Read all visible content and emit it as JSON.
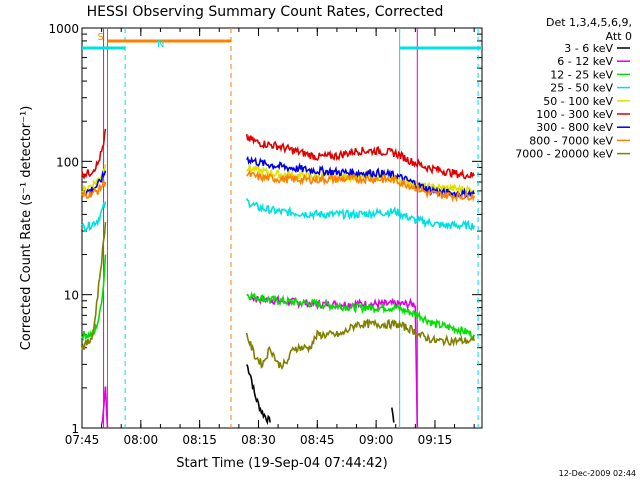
{
  "chart_data": {
    "type": "line",
    "title": "HESSI Observing Summary Count Rates, Corrected",
    "xlabel": "Start Time (19-Sep-04 07:44:42)",
    "ylabel": "Corrected Count Rate (s⁻¹ detector⁻¹)",
    "y_scale": "log",
    "ylim": [
      1,
      1000
    ],
    "xlim_minutes_after_0745": [
      0,
      102
    ],
    "xticks": [
      {
        "m": 0,
        "label": "07:45"
      },
      {
        "m": 15,
        "label": "08:00"
      },
      {
        "m": 30,
        "label": "08:15"
      },
      {
        "m": 45,
        "label": "08:30"
      },
      {
        "m": 60,
        "label": "08:45"
      },
      {
        "m": 75,
        "label": "09:00"
      },
      {
        "m": 90,
        "label": "09:15"
      }
    ],
    "yticks": [
      {
        "v": 1,
        "label": "1"
      },
      {
        "v": 10,
        "label": "10"
      },
      {
        "v": 100,
        "label": "100"
      },
      {
        "v": 1000,
        "label": "1000"
      }
    ],
    "legend": {
      "placement": "right",
      "header": [
        "Det 1,3,4,5,6,9,",
        "Att 0"
      ]
    },
    "series": [
      {
        "name": "3 - 6 keV",
        "color": "#000000",
        "segments": [
          [
            [
              42,
              3
            ],
            [
              43,
              2.5
            ],
            [
              44,
              1.8
            ],
            [
              45,
              1.5
            ],
            [
              46,
              1.3
            ],
            [
              47,
              1.2
            ],
            [
              48,
              1.1
            ]
          ],
          [
            [
              79,
              1.5
            ],
            [
              79.5,
              1.1
            ]
          ]
        ]
      },
      {
        "name": "6 - 12 keV",
        "color": "#e000e0",
        "segments": [
          [
            [
              5,
              1
            ],
            [
              6,
              2
            ],
            [
              6.5,
              1
            ]
          ],
          [
            [
              43,
              9.5
            ],
            [
              50,
              9
            ],
            [
              60,
              8.5
            ],
            [
              70,
              8.5
            ],
            [
              80,
              8.5
            ],
            [
              85,
              8.5
            ],
            [
              85.5,
              1
            ]
          ]
        ]
      },
      {
        "name": "12 - 25 keV",
        "color": "#00e000",
        "segments": [
          [
            [
              0,
              5
            ],
            [
              3,
              5
            ],
            [
              4.5,
              7
            ],
            [
              5.5,
              12
            ],
            [
              6,
              20
            ]
          ],
          [
            [
              42,
              10
            ],
            [
              45,
              9.5
            ],
            [
              50,
              9
            ],
            [
              60,
              8.5
            ],
            [
              70,
              8
            ],
            [
              80,
              8
            ],
            [
              86,
              7
            ],
            [
              90,
              6
            ],
            [
              96,
              5.5
            ],
            [
              100,
              5
            ]
          ]
        ]
      },
      {
        "name": "25 - 50 keV",
        "color": "#00e0e0",
        "segments": [
          [
            [
              0,
              32
            ],
            [
              2,
              33
            ],
            [
              4,
              36
            ],
            [
              5.5,
              45
            ],
            [
              6,
              50
            ]
          ],
          [
            [
              42,
              50
            ],
            [
              45,
              45
            ],
            [
              50,
              42
            ],
            [
              55,
              41
            ],
            [
              60,
              40
            ],
            [
              70,
              40
            ],
            [
              75,
              41
            ],
            [
              80,
              42
            ],
            [
              85,
              36
            ],
            [
              88,
              35
            ],
            [
              92,
              33
            ],
            [
              96,
              33
            ],
            [
              100,
              33
            ]
          ]
        ]
      },
      {
        "name": "50 - 100 keV",
        "color": "#e0e000",
        "segments": [
          [
            [
              0,
              60
            ],
            [
              2,
              65
            ],
            [
              4,
              72
            ],
            [
              5.5,
              85
            ],
            [
              6,
              95
            ]
          ],
          [
            [
              42,
              90
            ],
            [
              45,
              85
            ],
            [
              50,
              80
            ],
            [
              55,
              78
            ],
            [
              60,
              77
            ],
            [
              70,
              77
            ],
            [
              75,
              77
            ],
            [
              80,
              75
            ],
            [
              85,
              68
            ],
            [
              88,
              64
            ],
            [
              92,
              63
            ],
            [
              96,
              62
            ],
            [
              100,
              61
            ]
          ]
        ]
      },
      {
        "name": "100 - 300 keV",
        "color": "#e00000",
        "segments": [
          [
            [
              0,
              80
            ],
            [
              2,
              82
            ],
            [
              4,
              95
            ],
            [
              5.5,
              130
            ],
            [
              6,
              175
            ]
          ],
          [
            [
              42,
              150
            ],
            [
              45,
              138
            ],
            [
              50,
              130
            ],
            [
              55,
              118
            ],
            [
              60,
              108
            ],
            [
              65,
              110
            ],
            [
              70,
              120
            ],
            [
              75,
              120
            ],
            [
              80,
              115
            ],
            [
              84,
              100
            ],
            [
              88,
              90
            ],
            [
              92,
              85
            ],
            [
              96,
              80
            ],
            [
              100,
              78
            ]
          ]
        ]
      },
      {
        "name": "300 - 800 keV",
        "color": "#0000e0",
        "segments": [
          [
            [
              0,
              58
            ],
            [
              2,
              60
            ],
            [
              4,
              66
            ],
            [
              5.5,
              78
            ],
            [
              6,
              85
            ]
          ],
          [
            [
              42,
              105
            ],
            [
              45,
              98
            ],
            [
              50,
              92
            ],
            [
              55,
              88
            ],
            [
              60,
              85
            ],
            [
              65,
              83
            ],
            [
              70,
              82
            ],
            [
              75,
              82
            ],
            [
              80,
              78
            ],
            [
              85,
              68
            ],
            [
              88,
              62
            ],
            [
              92,
              58
            ],
            [
              96,
              57
            ],
            [
              100,
              57
            ]
          ]
        ]
      },
      {
        "name": "800 - 7000 keV",
        "color": "#ff8000",
        "segments": [
          [
            [
              0,
              55
            ],
            [
              2,
              57
            ],
            [
              4,
              60
            ],
            [
              5.5,
              68
            ],
            [
              6,
              70
            ]
          ],
          [
            [
              42,
              80
            ],
            [
              45,
              76
            ],
            [
              50,
              74
            ],
            [
              55,
              73
            ],
            [
              60,
              73
            ],
            [
              70,
              74
            ],
            [
              75,
              74
            ],
            [
              80,
              72
            ],
            [
              85,
              64
            ],
            [
              88,
              58
            ],
            [
              92,
              56
            ],
            [
              96,
              55
            ],
            [
              100,
              55
            ]
          ]
        ]
      },
      {
        "name": "7000 - 20000 keV",
        "color": "#808000",
        "segments": [
          [
            [
              0,
              4
            ],
            [
              2,
              4.5
            ],
            [
              3,
              5.5
            ],
            [
              4,
              10
            ],
            [
              5,
              18
            ],
            [
              6,
              35
            ]
          ],
          [
            [
              42,
              5
            ],
            [
              44,
              3.5
            ],
            [
              46,
              3
            ],
            [
              48,
              4
            ],
            [
              50,
              3
            ],
            [
              52,
              3
            ],
            [
              54,
              4
            ],
            [
              56,
              4
            ],
            [
              58,
              4
            ],
            [
              60,
              5
            ],
            [
              66,
              5
            ],
            [
              70,
              6
            ],
            [
              76,
              6
            ],
            [
              80,
              6
            ],
            [
              84,
              5.5
            ],
            [
              86,
              5
            ],
            [
              90,
              4.5
            ],
            [
              96,
              4.5
            ],
            [
              100,
              4.5
            ]
          ]
        ]
      }
    ],
    "annotations": {
      "flags_top": [
        {
          "label": "S",
          "color": "#ff8000",
          "start_m": 6.5,
          "end_m": 38
        },
        {
          "label": "N",
          "color": "#00e0e0",
          "start_m": 0,
          "end_m": 11
        },
        {
          "label": "",
          "color": "#00e0e0",
          "start_m": 81,
          "end_m": 102
        }
      ],
      "vertical_lines": [
        {
          "m": 6.5,
          "color": "#808000",
          "style": "solid"
        },
        {
          "m": 11,
          "color": "#00e0e0",
          "style": "dashed"
        },
        {
          "m": 38,
          "color": "#ff8000",
          "style": "dashed"
        },
        {
          "m": 81,
          "color": "#00e0e0",
          "style": "solid"
        },
        {
          "m": 101,
          "color": "#00e0e0",
          "style": "dashed"
        },
        {
          "m": 85.5,
          "color": "#e000e0",
          "style": "solid"
        },
        {
          "m": 5.5,
          "color": "#e000e0",
          "style": "solid"
        }
      ]
    },
    "footer_timestamp": "12-Dec-2009 02:44"
  }
}
